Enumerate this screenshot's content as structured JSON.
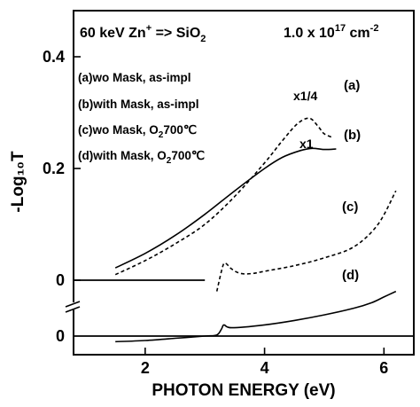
{
  "chart_data": {
    "type": "line",
    "title": "",
    "xlabel": "PHOTON ENERGY (eV)",
    "ylabel": "-Log₁₀T",
    "xlim": [
      0.8,
      6.5
    ],
    "x_ticks": [
      2,
      4,
      6
    ],
    "y_ticks_upper": [
      {
        "value": 0.4,
        "label": "0.4"
      },
      {
        "value": 0.2,
        "label": "0.2"
      },
      {
        "value": 0,
        "label": "0"
      }
    ],
    "y_tick_lower": {
      "label": "0"
    },
    "header": {
      "left_main": "60 keV Zn",
      "left_sup": "+",
      "left_arrow": " => SiO",
      "left_sub": "2",
      "right_main": "1.0 x 10",
      "right_sup": "17",
      "right_unit": " cm",
      "right_unit_sup": "-2"
    },
    "legend": [
      {
        "text": "(a)wo Mask, as-impl"
      },
      {
        "text": "(b)with Mask, as-impl"
      },
      {
        "pre": "(c)wo Mask, O",
        "sub": "2",
        "post": "700℃"
      },
      {
        "pre": "(d)with Mask, O",
        "sub": "2",
        "post": "700℃"
      }
    ],
    "series": [
      {
        "name": "(a)",
        "style": "dashed",
        "multiplier": "x1/4",
        "points": [
          [
            1.5,
            0.01
          ],
          [
            2.0,
            0.035
          ],
          [
            2.5,
            0.065
          ],
          [
            3.0,
            0.1
          ],
          [
            3.5,
            0.15
          ],
          [
            4.0,
            0.21
          ],
          [
            4.3,
            0.25
          ],
          [
            4.55,
            0.28
          ],
          [
            4.75,
            0.29
          ],
          [
            4.9,
            0.275
          ],
          [
            5.0,
            0.262
          ],
          [
            5.15,
            0.255
          ]
        ]
      },
      {
        "name": "(b)",
        "style": "solid",
        "multiplier": "x1",
        "points": [
          [
            1.5,
            0.022
          ],
          [
            2.0,
            0.048
          ],
          [
            2.5,
            0.08
          ],
          [
            3.0,
            0.118
          ],
          [
            3.5,
            0.16
          ],
          [
            4.0,
            0.2
          ],
          [
            4.3,
            0.22
          ],
          [
            4.6,
            0.232
          ],
          [
            4.8,
            0.236
          ],
          [
            5.0,
            0.234
          ],
          [
            5.2,
            0.235
          ]
        ]
      },
      {
        "name": "(c)",
        "style": "dashed",
        "points": [
          [
            3.2,
            -0.02
          ],
          [
            3.3,
            0.025
          ],
          [
            3.35,
            0.03
          ],
          [
            3.45,
            0.02
          ],
          [
            3.6,
            0.012
          ],
          [
            3.8,
            0.012
          ],
          [
            4.0,
            0.016
          ],
          [
            4.5,
            0.026
          ],
          [
            5.0,
            0.04
          ],
          [
            5.5,
            0.06
          ],
          [
            5.9,
            0.1
          ],
          [
            6.2,
            0.16
          ]
        ]
      },
      {
        "name": "(d)",
        "style": "solid",
        "points": [
          [
            1.5,
            -0.11
          ],
          [
            2.0,
            -0.108
          ],
          [
            2.5,
            -0.104
          ],
          [
            3.0,
            -0.1
          ],
          [
            3.2,
            -0.098
          ],
          [
            3.28,
            -0.087
          ],
          [
            3.32,
            -0.08
          ],
          [
            3.45,
            -0.085
          ],
          [
            4.0,
            -0.08
          ],
          [
            4.5,
            -0.072
          ],
          [
            5.0,
            -0.062
          ],
          [
            5.5,
            -0.05
          ],
          [
            5.8,
            -0.04
          ],
          [
            6.0,
            -0.03
          ],
          [
            6.2,
            -0.02
          ]
        ]
      }
    ],
    "grid": false
  }
}
